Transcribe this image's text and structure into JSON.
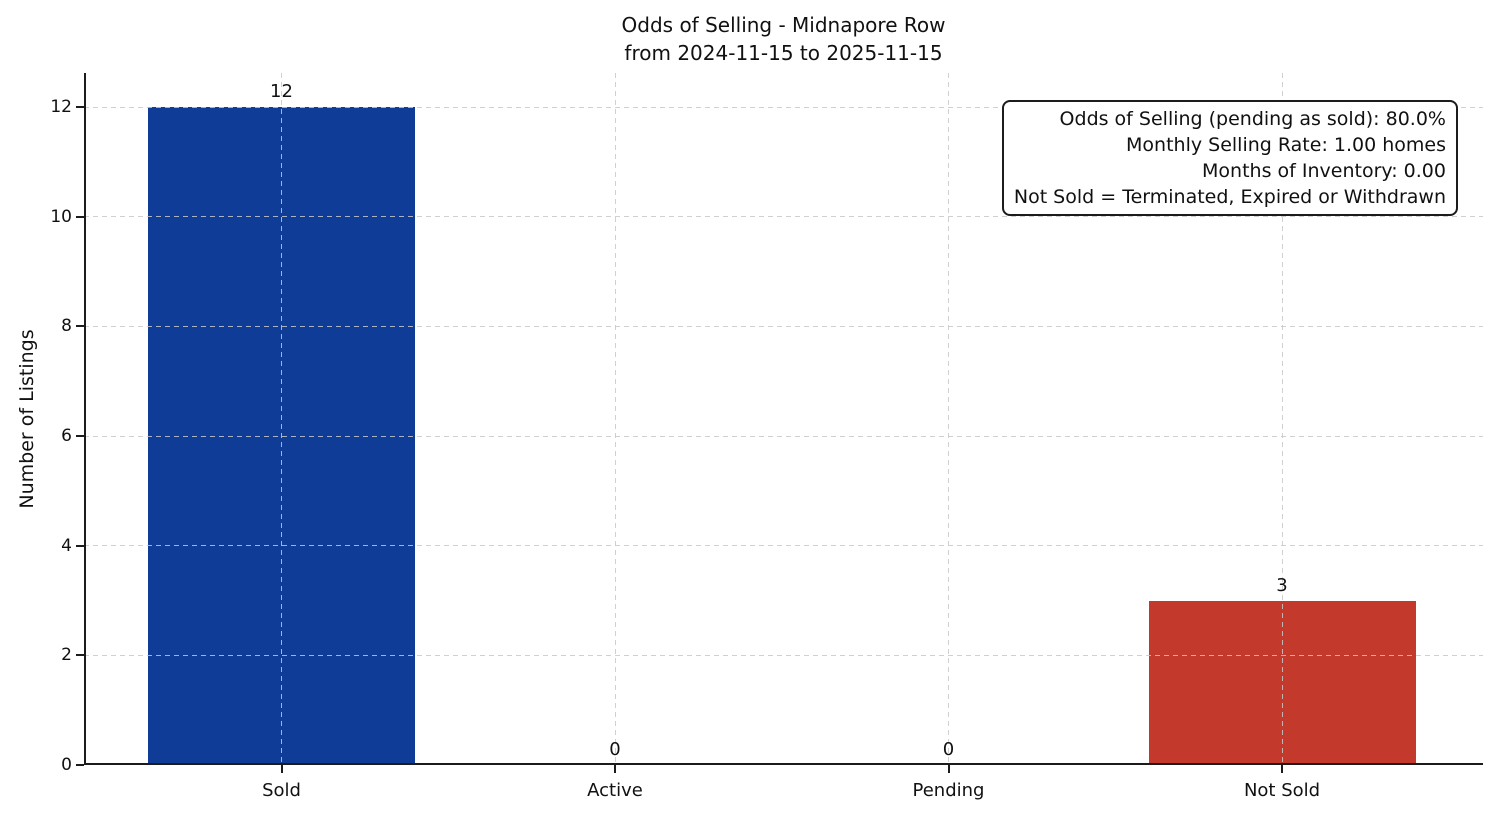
{
  "chart_data": {
    "type": "bar",
    "title_lines": [
      "Odds of Selling - Midnapore Row",
      "from 2024-11-15 to 2025-11-15"
    ],
    "ylabel": "Number of Listings",
    "xlabel": "",
    "categories": [
      "Sold",
      "Active",
      "Pending",
      "Not Sold"
    ],
    "values": [
      12,
      0,
      0,
      3
    ],
    "value_labels": [
      "12",
      "0",
      "0",
      "3"
    ],
    "bar_colors": [
      "#0e3c96",
      "#888888",
      "#888888",
      "#c33a2c"
    ],
    "yticks": [
      0,
      2,
      4,
      6,
      8,
      10,
      12
    ],
    "ylim": [
      0,
      12.62
    ],
    "grid": {
      "style": "dashed",
      "axes": "both",
      "color": "#d6d6d6"
    },
    "legend": "none",
    "annotation_lines": [
      "Odds of Selling (pending as sold): 80.0%",
      "Monthly Selling Rate: 1.00 homes",
      "Months of Inventory: 0.00",
      "Not Sold = Terminated, Expired or Withdrawn"
    ]
  }
}
